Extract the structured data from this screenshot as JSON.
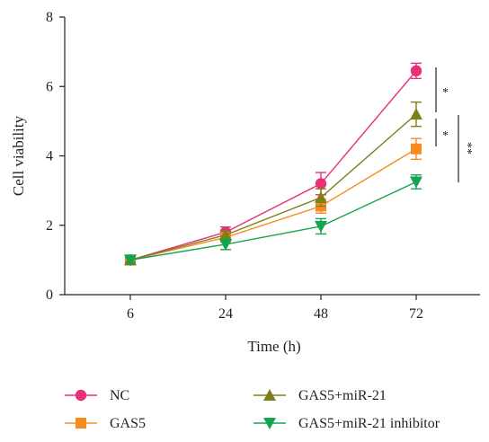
{
  "chart_data": {
    "type": "line",
    "title": "",
    "xlabel": "Time (h)",
    "ylabel": "Cell viability",
    "categories": [
      "6",
      "24",
      "48",
      "72"
    ],
    "ylim": [
      0,
      8
    ],
    "yticks": [
      "0",
      "2",
      "4",
      "6",
      "8"
    ],
    "grid": false,
    "legend_position": "bottom",
    "series": [
      {
        "name": "NC",
        "marker": "circle",
        "color": "#e6307a",
        "values": [
          1.0,
          1.8,
          3.2,
          6.45
        ],
        "errors": [
          0.08,
          0.15,
          0.32,
          0.22
        ]
      },
      {
        "name": "GAS5",
        "marker": "square",
        "color": "#f68b1f",
        "values": [
          1.0,
          1.65,
          2.55,
          4.2
        ],
        "errors": [
          0.08,
          0.12,
          0.2,
          0.3
        ]
      },
      {
        "name": "GAS5+miR-21",
        "marker": "triangle-up",
        "color": "#7f7f1a",
        "values": [
          1.0,
          1.72,
          2.8,
          5.2
        ],
        "errors": [
          0.08,
          0.14,
          0.25,
          0.35
        ]
      },
      {
        "name": "GAS5+miR-21 inhibitor",
        "marker": "triangle-down",
        "color": "#16a350",
        "values": [
          1.0,
          1.45,
          1.97,
          3.25
        ],
        "errors": [
          0.08,
          0.15,
          0.22,
          0.2
        ]
      }
    ],
    "annotations": [
      "*",
      "*",
      "**"
    ]
  }
}
